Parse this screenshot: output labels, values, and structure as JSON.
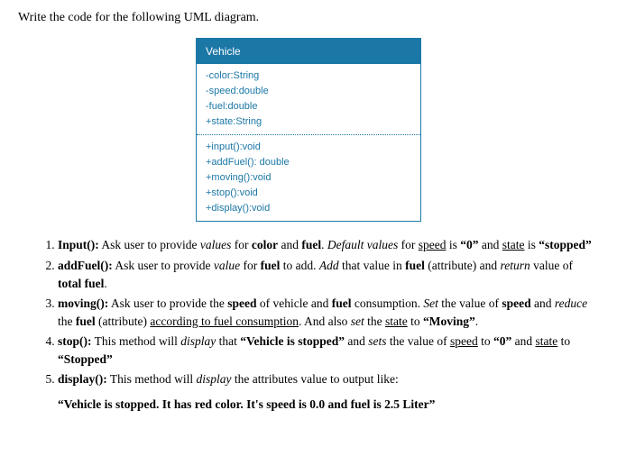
{
  "prompt": "Write the code for the following UML diagram.",
  "uml": {
    "header": "Vehicle",
    "header_bg": "#1b77a6",
    "header_fg": "#ffffff",
    "border_color": "#1f7aa8",
    "text_color": "#1b77a6",
    "attributes": [
      "-color:String",
      "-speed:double",
      "-fuel:double",
      "+state:String"
    ],
    "methods": [
      "+input():void",
      "+addFuel(): double",
      "+moving():void",
      "+stop():void",
      "+display():void"
    ]
  },
  "steps": {
    "s1_name": "Input():",
    "s1_a": " Ask user to provide ",
    "s1_values": "values",
    "s1_b": " for ",
    "s1_color": "color",
    "s1_c": " and ",
    "s1_fuel": "fuel",
    "s1_d": ". ",
    "s1_default": "Default values",
    "s1_e": " for ",
    "s1_speed": "speed",
    "s1_f": " is ",
    "s1_zero": "“0”",
    "s1_g": " and ",
    "s1_state": "state",
    "s1_h": " is ",
    "s1_stopped": "“stopped”",
    "s2_name": "addFuel():",
    "s2_a": " Ask user to provide ",
    "s2_value": "value",
    "s2_b": " for ",
    "s2_fuel": "fuel",
    "s2_c": " to add. ",
    "s2_add": "Add",
    "s2_d": " that value in ",
    "s2_fuel2": "fuel",
    "s2_e": " (attribute) and ",
    "s2_return": "return",
    "s2_f": " value of ",
    "s2_total": "total fuel",
    "s2_g": ".",
    "s3_name": "moving():",
    "s3_a": " Ask user to provide the ",
    "s3_speed": "speed",
    "s3_b": " of vehicle and ",
    "s3_fuel": "fuel",
    "s3_c": " consumption. ",
    "s3_set": "Set",
    "s3_d": " the value of ",
    "s3_speed2": "speed",
    "s3_e": " and ",
    "s3_reduce": "reduce",
    "s3_f": " the ",
    "s3_fuel2": "fuel",
    "s3_g": " (attribute) ",
    "s3_accord": "according to fuel consumption",
    "s3_h": ". And also ",
    "s3_set2": "set",
    "s3_i": " the ",
    "s3_state": "state",
    "s3_j": " to ",
    "s3_moving": "“Moving”",
    "s3_k": ".",
    "s4_name": "stop():",
    "s4_a": " This method will ",
    "s4_display": "display",
    "s4_b": " that ",
    "s4_msg": "“Vehicle is stopped”",
    "s4_c": " and ",
    "s4_sets": "sets",
    "s4_d": " the value of ",
    "s4_speed": "speed",
    "s4_e": " to ",
    "s4_zero": "“0”",
    "s4_f": " and ",
    "s4_state": "state",
    "s4_g": " to ",
    "s4_stopped": "“Stopped”",
    "s5_name": "display():",
    "s5_a": " This method will ",
    "s5_display": "display",
    "s5_b": " the attributes value to output like:"
  },
  "output_example": "“Vehicle is stopped. It has red color. It's speed is 0.0 and fuel is 2.5 Liter”"
}
